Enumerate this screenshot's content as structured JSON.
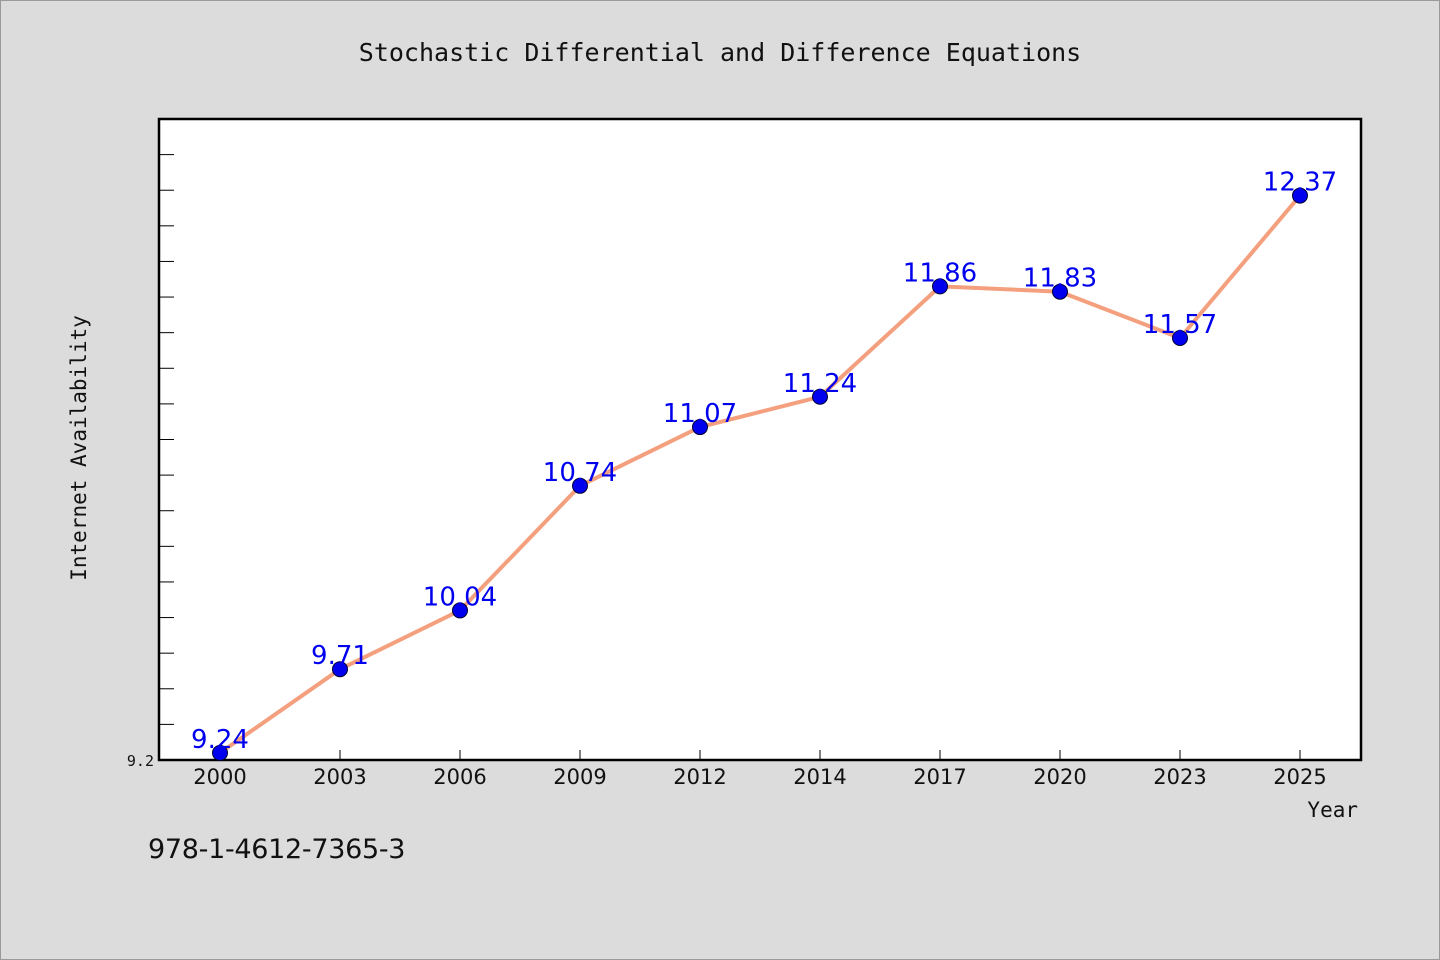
{
  "caption": "978-1-4612-7365-3",
  "colors": {
    "background": "#dcdcdc",
    "plot_background": "#ffffff",
    "line": "#f4a07e",
    "marker": "#0000ee",
    "data_label": "#0000ee",
    "text": "#111111"
  },
  "chart_data": {
    "type": "line",
    "title": "Stochastic Differential and Difference Equations",
    "xlabel": "Year",
    "ylabel": "Internet Availability",
    "categories": [
      "2000",
      "2003",
      "2006",
      "2009",
      "2012",
      "2014",
      "2017",
      "2020",
      "2023",
      "2025"
    ],
    "series": [
      {
        "values": [
          9.24,
          9.71,
          10.04,
          10.74,
          11.07,
          11.24,
          11.86,
          11.83,
          11.57,
          12.37
        ]
      }
    ],
    "data_labels": [
      "9.24",
      "9.71",
      "10.04",
      "10.74",
      "11.07",
      "11.24",
      "11.86",
      "11.83",
      "11.57",
      "12.37"
    ],
    "y_tick_labels": [
      "9.2"
    ],
    "ylim": [
      9.2,
      12.8
    ],
    "grid": false,
    "legend": "none",
    "markers": true
  }
}
